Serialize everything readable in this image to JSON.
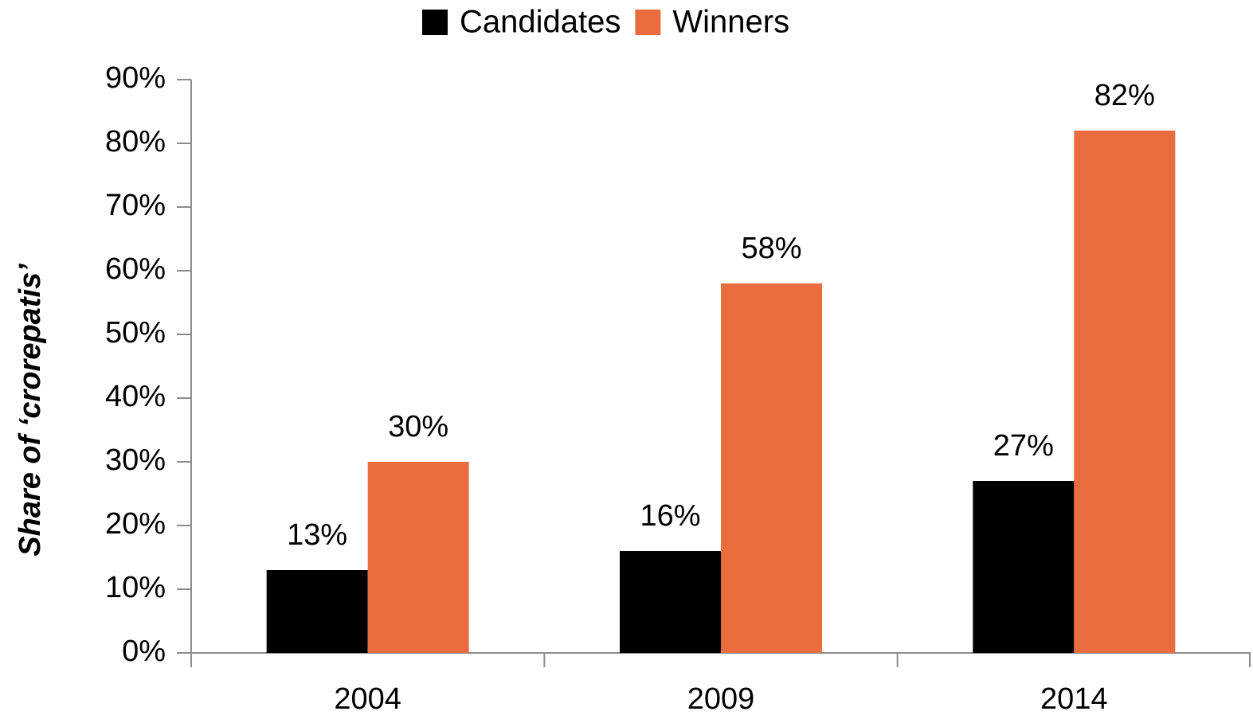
{
  "chart_data": {
    "type": "bar",
    "y_label": "Share of ‘crorepatis’",
    "categories": [
      "2004",
      "2009",
      "2014"
    ],
    "series": [
      {
        "name": "Candidates",
        "color": "#000000",
        "values": [
          13,
          16,
          27
        ],
        "value_labels": [
          "13%",
          "16%",
          "27%"
        ]
      },
      {
        "name": "Winners",
        "color": "#e86c3e",
        "values": [
          30,
          58,
          82
        ],
        "value_labels": [
          "30%",
          "58%",
          "82%"
        ]
      }
    ],
    "ylim": [
      0,
      90
    ],
    "yticks": [
      {
        "value": 0,
        "label": "0%"
      },
      {
        "value": 10,
        "label": "10%"
      },
      {
        "value": 20,
        "label": "20%"
      },
      {
        "value": 30,
        "label": "30%"
      },
      {
        "value": 40,
        "label": "40%"
      },
      {
        "value": 50,
        "label": "50%"
      },
      {
        "value": 60,
        "label": "60%"
      },
      {
        "value": 70,
        "label": "70%"
      },
      {
        "value": 80,
        "label": "80%"
      },
      {
        "value": 90,
        "label": "90%"
      }
    ],
    "legend": "top"
  }
}
